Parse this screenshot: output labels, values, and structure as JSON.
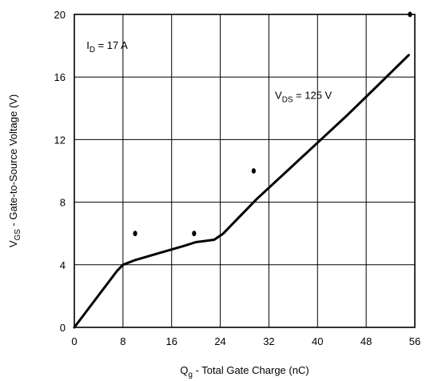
{
  "chart_data": {
    "type": "line",
    "xlabel": {
      "main": "Q",
      "sub": "g",
      "rest": " - Total Gate Charge (nC)"
    },
    "ylabel": {
      "main": "V",
      "sub": "GS",
      "rest": " - Gate-to-Source Voltage (V)"
    },
    "xlim": [
      0,
      56
    ],
    "ylim": [
      0,
      20
    ],
    "x_ticks": [
      0,
      8,
      16,
      24,
      32,
      40,
      48,
      56
    ],
    "x_tick_labels": [
      "0",
      "8",
      "16",
      "24",
      "32",
      "40",
      "48",
      "56"
    ],
    "y_ticks": [
      0,
      4,
      8,
      12,
      16,
      20
    ],
    "y_tick_labels": [
      "0",
      "4",
      "8",
      "12",
      "16",
      "20"
    ],
    "grid": true,
    "annotations": [
      {
        "id": "id-annotation",
        "main": "I",
        "sub": "D",
        "rest": " = 17 A",
        "x": 2,
        "y": 17.8
      },
      {
        "id": "vds-annotation",
        "main": "V",
        "sub": "DS",
        "rest": " = 125 V",
        "x": 33,
        "y": 14.6
      }
    ],
    "series": [
      {
        "x": [
          0,
          7,
          8,
          10,
          14,
          18,
          20,
          23,
          24.5,
          27,
          30,
          35,
          40,
          45,
          50,
          55
        ],
        "y": [
          0,
          3.6,
          4.0,
          4.3,
          4.75,
          5.2,
          5.45,
          5.6,
          6.0,
          7.0,
          8.2,
          10.0,
          11.8,
          13.6,
          15.5,
          17.4
        ]
      }
    ],
    "markers": [
      {
        "x": 10,
        "y": 6.0
      },
      {
        "x": 19.7,
        "y": 6.0
      },
      {
        "x": 29.5,
        "y": 10.0
      },
      {
        "x": 55.2,
        "y": 20.0
      }
    ]
  }
}
